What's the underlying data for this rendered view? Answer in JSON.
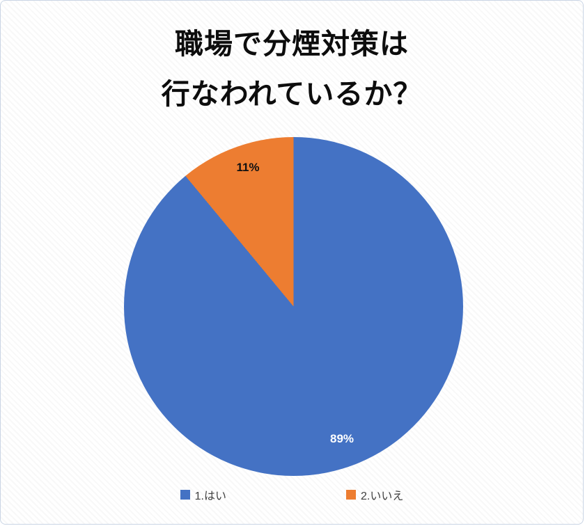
{
  "chart_data": {
    "type": "pie",
    "title_line1": "職場で分煙対策は",
    "title_line2": "行なわれているか？",
    "labels": [
      "1.はい",
      "2.いいえ"
    ],
    "values": [
      89,
      11
    ],
    "value_labels": [
      "89%",
      "11%"
    ],
    "colors": [
      "#4472C4",
      "#ED7D31"
    ],
    "legend_position": "bottom",
    "start_angle_deg": 0,
    "direction": "clockwise"
  }
}
